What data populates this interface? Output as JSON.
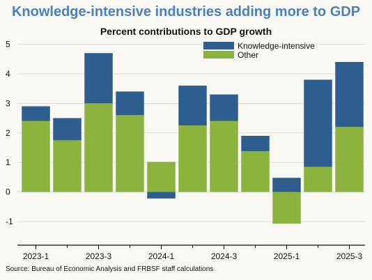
{
  "chart_data": {
    "type": "bar",
    "stacked": true,
    "title": "Knowledge-intensive industries adding more to GDP",
    "subtitle": "Percent contributions to GDP growth",
    "categories": [
      "2023-1",
      "2023-2",
      "2023-3",
      "2023-4",
      "2024-1",
      "2024-2",
      "2024-3",
      "2024-4",
      "2025-1",
      "2025-2",
      "2025-3"
    ],
    "tick_labels": [
      "2023-1",
      "2023-3",
      "2024-1",
      "2024-3",
      "2025-1",
      "2025-3"
    ],
    "series": [
      {
        "name": "Knowledge-intensive",
        "color": "#2e5e8e",
        "values": [
          0.5,
          0.75,
          1.7,
          0.8,
          -0.22,
          1.35,
          0.9,
          0.52,
          0.48,
          2.95,
          2.2
        ]
      },
      {
        "name": "Other",
        "color": "#8db33f",
        "values": [
          2.4,
          1.75,
          3.0,
          2.6,
          1.02,
          2.25,
          2.4,
          1.38,
          -1.07,
          0.85,
          2.2
        ]
      }
    ],
    "ylim": [
      -1.8,
      5.2
    ],
    "yticks": [
      -1,
      0,
      1,
      2,
      3,
      4,
      5
    ],
    "grid": true,
    "legend": "top-right"
  },
  "source": "Source: Bureau of Economic Analysis and FRBSF staff calculations"
}
